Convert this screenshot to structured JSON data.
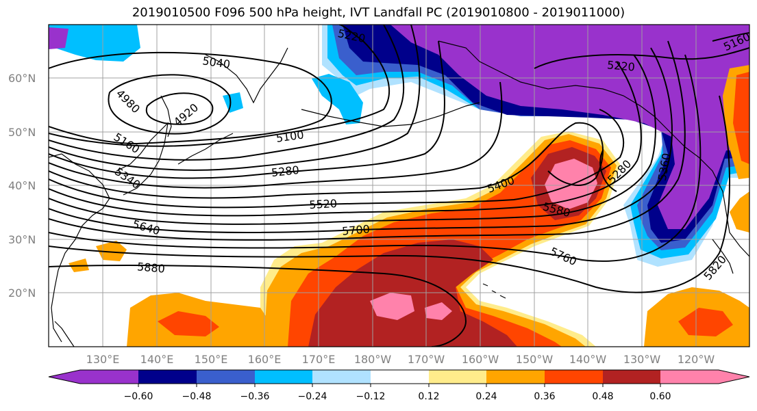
{
  "title": "2019010500 F096 500 hPa height, IVT Landfall PC (2019010800 - 2019011000)",
  "map": {
    "lat_labels": [
      "60°N",
      "50°N",
      "40°N",
      "30°N",
      "20°N"
    ],
    "lon_labels": [
      "130°E",
      "140°E",
      "150°E",
      "160°E",
      "170°E",
      "180°W",
      "170°W",
      "160°W",
      "150°W",
      "140°W",
      "130°W",
      "120°W"
    ],
    "contour_labels": [
      "5220",
      "5040",
      "4980",
      "4920",
      "5100",
      "5160",
      "5280",
      "5340",
      "5520",
      "5400",
      "5640",
      "5700",
      "5580",
      "5880",
      "5760",
      "5820",
      "5220",
      "5280",
      "5360",
      "5160"
    ],
    "colors": {
      "pc_neg_extreme": "#9932cc",
      "pc_neg_strong": "#00008b",
      "pc_neg_moderate": "#3a5fcd",
      "pc_neg_weak": "#00bfff",
      "pc_neg_faint": "#b0e2ff",
      "pc_pos_faint": "#ffec8b",
      "pc_pos_weak": "#ffa500",
      "pc_pos_moderate": "#ff4500",
      "pc_pos_strong": "#b22222",
      "pc_pos_extreme": "#ff82ab"
    }
  },
  "colorbar": {
    "tick_labels": [
      "−0.60",
      "−0.48",
      "−0.36",
      "−0.24",
      "−0.12",
      "0.12",
      "0.24",
      "0.36",
      "0.48",
      "0.60"
    ],
    "colors": [
      "#9932cc",
      "#00008b",
      "#3a5fcd",
      "#00bfff",
      "#b0e2ff",
      "#ffffff",
      "#ffec8b",
      "#ffa500",
      "#ff4500",
      "#b22222",
      "#ff82ab"
    ]
  }
}
